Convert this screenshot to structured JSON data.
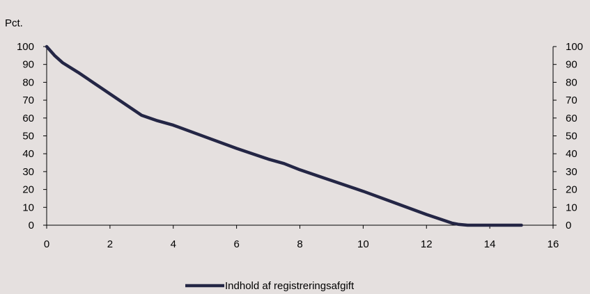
{
  "chart_data": {
    "type": "line",
    "ylabel": "Pct.",
    "xlim": [
      0,
      16
    ],
    "ylim": [
      0,
      100
    ],
    "x_ticks": [
      0,
      2,
      4,
      6,
      8,
      10,
      12,
      14,
      16
    ],
    "y_ticks": [
      0,
      10,
      20,
      30,
      40,
      50,
      60,
      70,
      80,
      90,
      100
    ],
    "right_axis": true,
    "grid": false,
    "legend_position": "bottom-center",
    "series": [
      {
        "name": "Indhold af registreringsafgift",
        "color": "#242645",
        "x": [
          0,
          0.25,
          0.5,
          1,
          1.5,
          2,
          2.5,
          3,
          3.5,
          4,
          5,
          6,
          7,
          7.5,
          8,
          9,
          10,
          11,
          12,
          12.5,
          12.8,
          13,
          13.3,
          14,
          15
        ],
        "y": [
          100,
          95,
          91,
          85.5,
          79.5,
          73.5,
          67.5,
          61.5,
          58.5,
          56,
          49.5,
          43,
          37,
          34.5,
          31,
          25,
          19,
          12.5,
          6,
          3,
          1.2,
          0.5,
          0,
          0,
          0
        ]
      }
    ]
  }
}
